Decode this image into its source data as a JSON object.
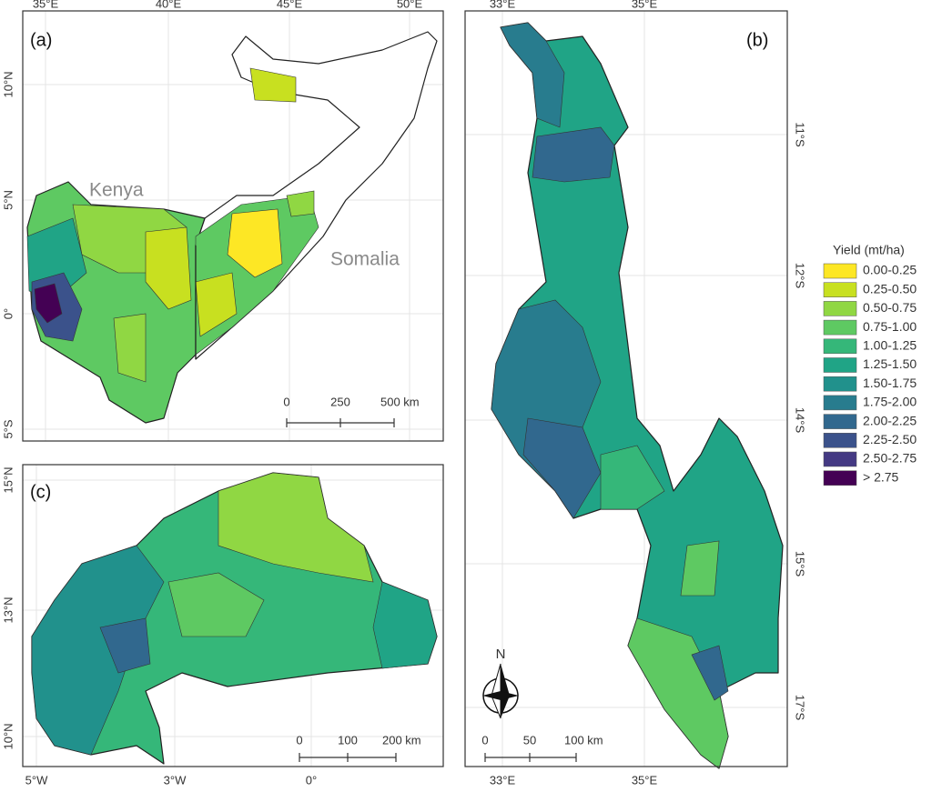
{
  "panels": [
    {
      "label": "(a)",
      "lon_ticks": [
        "35°E",
        "40°E",
        "45°E",
        "50°E"
      ],
      "lat_ticks": [
        "10°N",
        "5°N",
        "0°",
        "5°S"
      ],
      "countries": [
        "Kenya",
        "Somalia"
      ],
      "scale": [
        "0",
        "250",
        "500 km"
      ]
    },
    {
      "label": "(b)",
      "lon_ticks": [
        "33°E",
        "35°E"
      ],
      "lat_ticks": [
        "11°S",
        "12°S",
        "14°S",
        "15°S",
        "17°S"
      ],
      "north": "N",
      "scale": [
        "0",
        "50",
        "100 km"
      ]
    },
    {
      "label": "(c)",
      "lon_ticks": [
        "5°W",
        "3°W",
        "0°"
      ],
      "lat_ticks": [
        "15°N",
        "13°N",
        "10°N"
      ],
      "scale": [
        "0",
        "100",
        "200 km"
      ]
    }
  ],
  "legend": {
    "title": "Yield (mt/ha)",
    "items": [
      {
        "label": "0.00-0.25",
        "color": "#fde725"
      },
      {
        "label": "0.25-0.50",
        "color": "#c8e020"
      },
      {
        "label": "0.50-0.75",
        "color": "#90d743"
      },
      {
        "label": "0.75-1.00",
        "color": "#5ec962"
      },
      {
        "label": "1.00-1.25",
        "color": "#35b779"
      },
      {
        "label": "1.25-1.50",
        "color": "#20a486"
      },
      {
        "label": "1.50-1.75",
        "color": "#21918c"
      },
      {
        "label": "1.75-2.00",
        "color": "#287c8e"
      },
      {
        "label": "2.00-2.25",
        "color": "#31688e"
      },
      {
        "label": "2.25-2.50",
        "color": "#3b528b"
      },
      {
        "label": "2.50-2.75",
        "color": "#443983"
      },
      {
        "label": "> 2.75",
        "color": "#440154"
      }
    ]
  }
}
